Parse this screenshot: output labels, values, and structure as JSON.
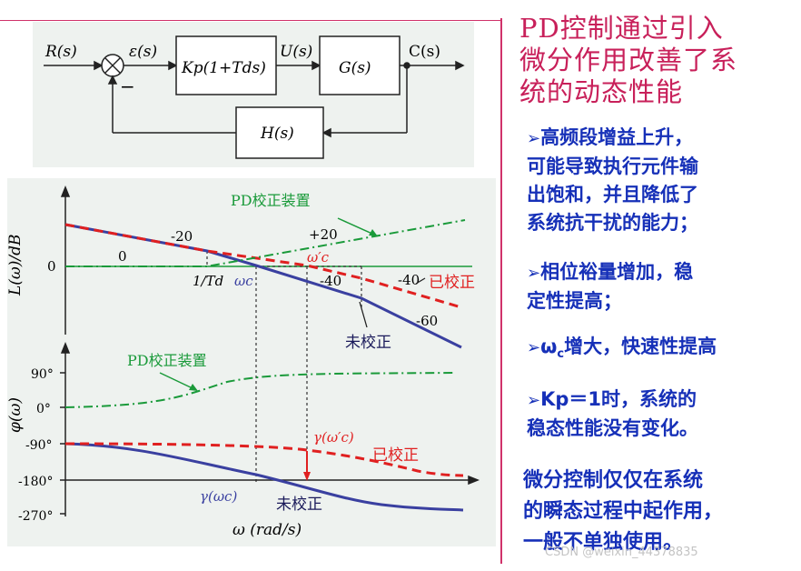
{
  "block_diagram": {
    "input": "R(s)",
    "error": "ε(s)",
    "controller": "Kp(1+Tds)",
    "u": "U(s)",
    "plant": "G(s)",
    "output": "C(s)",
    "feedback": "H(s)",
    "minus": "−"
  },
  "magnitude_plot": {
    "ylabel": "L(ω)/dB",
    "zero": "0",
    "pd_label": "PD校正装置",
    "slopes": [
      "0",
      "-20",
      "+20",
      "-40",
      "-40",
      "-60"
    ],
    "omega_c": "ωc",
    "omega_c_prime": "ω′c",
    "corner": "1/Td",
    "corrected": "已校正",
    "uncorrected": "未校正"
  },
  "phase_plot": {
    "ylabel": "φ(ω)",
    "ticks": [
      "90°",
      "0°",
      "-90°",
      "-180°",
      "-270°"
    ],
    "pd_label": "PD校正装置",
    "gamma_prime": "γ(ω′c)",
    "gamma": "γ(ωc)",
    "corrected": "已校正",
    "uncorrected": "未校正",
    "xlabel": "ω (rad/s)"
  },
  "colors": {
    "corrected": "#e02020",
    "uncorrected": "#3a40a0",
    "pd": "#1a9a3a",
    "title": "#c8205a",
    "text": "#1630b8"
  },
  "right_text": {
    "title_l1": "PD控制通过引入",
    "title_l2": "微分作用改善了系",
    "title_l3": "统的动态性能",
    "b1_l1": "高频段增益上升，",
    "b1_l2": "可能导致执行元件输",
    "b1_l3": "出饱和，并且降低了",
    "b1_l4": "系统抗干扰的能力；",
    "b2_l1": "相位裕量增加，稳",
    "b2_l2": "定性提高；",
    "b3_pre": "ω",
    "b3_sub": "c",
    "b3_post": "增大，快速性提高",
    "b4_l1": "Kp＝1时，系统的",
    "b4_l2": "稳态性能没有变化。",
    "closing_l1": "微分控制仅仅在系统",
    "closing_l2": "的瞬态过程中起作用，",
    "closing_l3": "一般不单独使用。",
    "watermark": "CSDN @weixin_44378835"
  }
}
